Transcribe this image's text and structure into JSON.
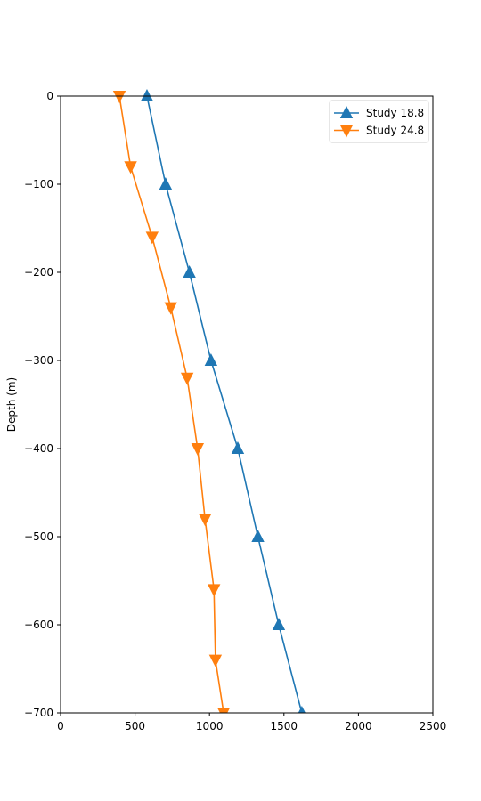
{
  "chart_data": {
    "type": "line",
    "title": "",
    "xlabel": "",
    "ylabel": "Depth (m)",
    "xlim": [
      0,
      2500
    ],
    "ylim": [
      -700,
      0
    ],
    "xticks": [
      0,
      500,
      1000,
      1500,
      2000,
      2500
    ],
    "yticks": [
      0,
      -100,
      -200,
      -300,
      -400,
      -500,
      -600,
      -700
    ],
    "xtick_labels": [
      "0",
      "500",
      "1000",
      "1500",
      "2000",
      "2500"
    ],
    "ytick_labels": [
      "0",
      "−100",
      "−200",
      "−300",
      "−400",
      "−500",
      "−600",
      "−700"
    ],
    "grid": false,
    "legend_position": "top-right",
    "series": [
      {
        "name": "Study 18.8",
        "color": "#1f77b4",
        "marker": "triangle-up",
        "points": [
          [
            580,
            0
          ],
          [
            705,
            -100
          ],
          [
            865,
            -200
          ],
          [
            1010,
            -300
          ],
          [
            1190,
            -400
          ],
          [
            1325,
            -500
          ],
          [
            1465,
            -600
          ],
          [
            1620,
            -700
          ]
        ]
      },
      {
        "name": "Study 24.8",
        "color": "#ff7f0e",
        "marker": "triangle-down",
        "points": [
          [
            395,
            0
          ],
          [
            470,
            -80
          ],
          [
            615,
            -160
          ],
          [
            740,
            -240
          ],
          [
            850,
            -320
          ],
          [
            920,
            -400
          ],
          [
            970,
            -480
          ],
          [
            1030,
            -560
          ],
          [
            1040,
            -640
          ],
          [
            1095,
            -700
          ]
        ]
      }
    ]
  }
}
